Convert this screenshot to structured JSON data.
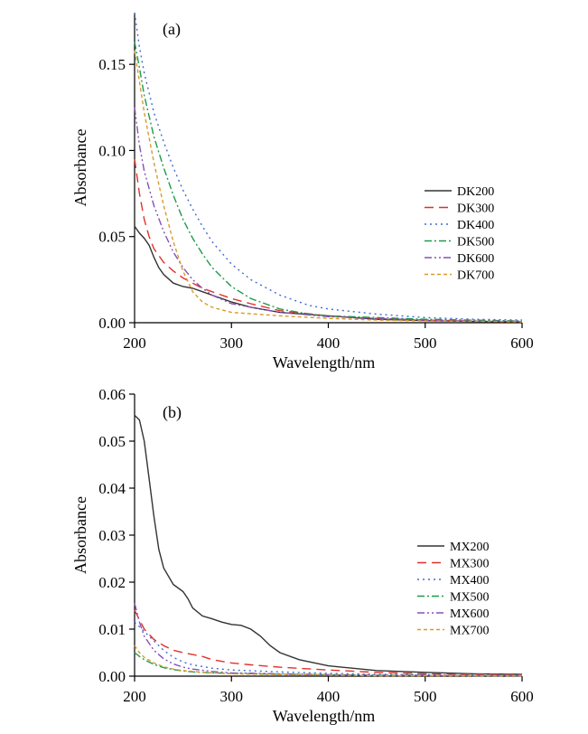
{
  "chart_data": [
    {
      "type": "line",
      "panel_label": "(a)",
      "xlabel": "Wavelength/nm",
      "ylabel": "Absorbance",
      "xlim": [
        200,
        600
      ],
      "ylim": [
        0,
        0.18
      ],
      "xticks": [
        200,
        300,
        400,
        500,
        600
      ],
      "yticks": [
        0.0,
        0.05,
        0.1,
        0.15
      ],
      "ytick_labels": [
        "0.00",
        "0.05",
        "0.10",
        "0.15"
      ],
      "legend_position": "right",
      "grid": false,
      "series": [
        {
          "name": "DK200",
          "color": "#333333",
          "dash": "solid",
          "x": [
            200,
            205,
            210,
            215,
            220,
            225,
            230,
            240,
            250,
            260,
            270,
            280,
            300,
            320,
            350,
            400,
            450,
            500,
            550,
            600
          ],
          "y": [
            0.056,
            0.052,
            0.049,
            0.045,
            0.038,
            0.032,
            0.028,
            0.023,
            0.021,
            0.02,
            0.018,
            0.016,
            0.012,
            0.009,
            0.006,
            0.004,
            0.002,
            0.0012,
            0.0008,
            0.0005
          ]
        },
        {
          "name": "DK300",
          "color": "#e0312b",
          "dash": "long-dash",
          "x": [
            200,
            205,
            210,
            215,
            220,
            230,
            240,
            250,
            260,
            270,
            280,
            300,
            320,
            350,
            400,
            450,
            500,
            550,
            600
          ],
          "y": [
            0.095,
            0.075,
            0.06,
            0.05,
            0.043,
            0.035,
            0.03,
            0.026,
            0.023,
            0.02,
            0.018,
            0.014,
            0.011,
            0.007,
            0.004,
            0.0025,
            0.0015,
            0.001,
            0.0006
          ]
        },
        {
          "name": "DK400",
          "color": "#3d6bd1",
          "dash": "dot",
          "x": [
            200,
            205,
            210,
            220,
            230,
            240,
            250,
            260,
            270,
            280,
            300,
            320,
            350,
            380,
            400,
            450,
            500,
            550,
            600
          ],
          "y": [
            0.18,
            0.16,
            0.145,
            0.122,
            0.105,
            0.09,
            0.077,
            0.066,
            0.056,
            0.047,
            0.034,
            0.025,
            0.016,
            0.01,
            0.008,
            0.005,
            0.003,
            0.002,
            0.0015
          ]
        },
        {
          "name": "DK500",
          "color": "#1e9a4c",
          "dash": "dash-dot",
          "x": [
            200,
            205,
            210,
            220,
            230,
            240,
            250,
            260,
            270,
            280,
            300,
            320,
            350,
            380,
            400,
            450,
            500,
            550,
            600
          ],
          "y": [
            0.163,
            0.148,
            0.132,
            0.108,
            0.09,
            0.074,
            0.06,
            0.049,
            0.04,
            0.032,
            0.021,
            0.014,
            0.008,
            0.005,
            0.004,
            0.003,
            0.002,
            0.0015,
            0.001
          ]
        },
        {
          "name": "DK600",
          "color": "#8650b8",
          "dash": "dash-dot-dot",
          "x": [
            200,
            205,
            210,
            220,
            230,
            240,
            250,
            260,
            270,
            280,
            300,
            350,
            400,
            450,
            500,
            550,
            600
          ],
          "y": [
            0.125,
            0.103,
            0.088,
            0.068,
            0.053,
            0.041,
            0.032,
            0.025,
            0.02,
            0.016,
            0.011,
            0.006,
            0.0035,
            0.0025,
            0.0015,
            0.001,
            0.0008
          ]
        },
        {
          "name": "DK700",
          "color": "#d99a2b",
          "dash": "short-dash",
          "x": [
            200,
            205,
            210,
            220,
            230,
            240,
            250,
            260,
            270,
            280,
            300,
            350,
            400,
            450,
            500,
            550,
            600
          ],
          "y": [
            0.158,
            0.14,
            0.122,
            0.093,
            0.068,
            0.047,
            0.03,
            0.018,
            0.012,
            0.009,
            0.006,
            0.004,
            0.0025,
            0.0015,
            0.001,
            0.0008,
            0.0005
          ]
        }
      ]
    },
    {
      "type": "line",
      "panel_label": "(b)",
      "xlabel": "Wavelength/nm",
      "ylabel": "Absorbance",
      "xlim": [
        200,
        600
      ],
      "ylim": [
        0,
        0.06
      ],
      "xticks": [
        200,
        300,
        400,
        500,
        600
      ],
      "yticks": [
        0.0,
        0.01,
        0.02,
        0.03,
        0.04,
        0.05,
        0.06
      ],
      "ytick_labels": [
        "0.00",
        "0.01",
        "0.02",
        "0.03",
        "0.04",
        "0.05",
        "0.06"
      ],
      "legend_position": "right",
      "grid": false,
      "series": [
        {
          "name": "MX200",
          "color": "#333333",
          "dash": "solid",
          "x": [
            200,
            205,
            210,
            215,
            220,
            225,
            230,
            240,
            250,
            255,
            260,
            270,
            280,
            290,
            300,
            310,
            320,
            330,
            340,
            350,
            370,
            400,
            450,
            500,
            550,
            600
          ],
          "y": [
            0.0555,
            0.0545,
            0.05,
            0.042,
            0.034,
            0.027,
            0.023,
            0.0195,
            0.018,
            0.0165,
            0.0145,
            0.0128,
            0.0122,
            0.0115,
            0.011,
            0.0108,
            0.01,
            0.0085,
            0.0065,
            0.005,
            0.0035,
            0.0022,
            0.0012,
            0.0008,
            0.0005,
            0.0004
          ]
        },
        {
          "name": "MX300",
          "color": "#e0312b",
          "dash": "long-dash",
          "x": [
            200,
            205,
            210,
            220,
            230,
            240,
            250,
            260,
            270,
            280,
            300,
            320,
            350,
            400,
            450,
            500,
            550,
            600
          ],
          "y": [
            0.014,
            0.012,
            0.01,
            0.0078,
            0.0065,
            0.0055,
            0.005,
            0.0046,
            0.0042,
            0.0035,
            0.0028,
            0.0024,
            0.0019,
            0.0013,
            0.0008,
            0.0005,
            0.0004,
            0.0003
          ]
        },
        {
          "name": "MX400",
          "color": "#3d6bd1",
          "dash": "dot",
          "x": [
            200,
            205,
            210,
            220,
            230,
            240,
            250,
            260,
            280,
            300,
            350,
            400,
            450,
            500,
            550,
            600
          ],
          "y": [
            0.0115,
            0.0105,
            0.0095,
            0.0075,
            0.0055,
            0.004,
            0.003,
            0.0024,
            0.0017,
            0.0013,
            0.0009,
            0.0006,
            0.0004,
            0.0003,
            0.0002,
            0.0002
          ]
        },
        {
          "name": "MX500",
          "color": "#1e9a4c",
          "dash": "dash-dot",
          "x": [
            200,
            205,
            210,
            220,
            230,
            240,
            250,
            260,
            280,
            300,
            350,
            400,
            450,
            500,
            550,
            600
          ],
          "y": [
            0.005,
            0.0042,
            0.0035,
            0.0025,
            0.0018,
            0.0014,
            0.0011,
            0.0009,
            0.0007,
            0.0006,
            0.0004,
            0.0003,
            0.0002,
            0.0002,
            0.0001,
            0.0001
          ]
        },
        {
          "name": "MX600",
          "color": "#8650b8",
          "dash": "dash-dot-dot",
          "x": [
            200,
            205,
            210,
            220,
            230,
            240,
            250,
            260,
            280,
            300,
            350,
            400,
            450,
            500,
            550,
            600
          ],
          "y": [
            0.0155,
            0.0115,
            0.0085,
            0.0055,
            0.0037,
            0.0026,
            0.0019,
            0.0015,
            0.001,
            0.0007,
            0.0005,
            0.0003,
            0.0002,
            0.0002,
            0.0001,
            0.0001
          ]
        },
        {
          "name": "MX700",
          "color": "#d99a2b",
          "dash": "short-dash",
          "x": [
            200,
            205,
            210,
            220,
            230,
            240,
            250,
            260,
            280,
            300,
            350,
            400,
            450,
            500,
            550,
            600
          ],
          "y": [
            0.0065,
            0.005,
            0.004,
            0.0028,
            0.002,
            0.0015,
            0.0012,
            0.001,
            0.0007,
            0.0005,
            0.0003,
            0.0002,
            0.0001,
            0.0001,
            0.0001,
            0.0001
          ]
        }
      ]
    }
  ]
}
